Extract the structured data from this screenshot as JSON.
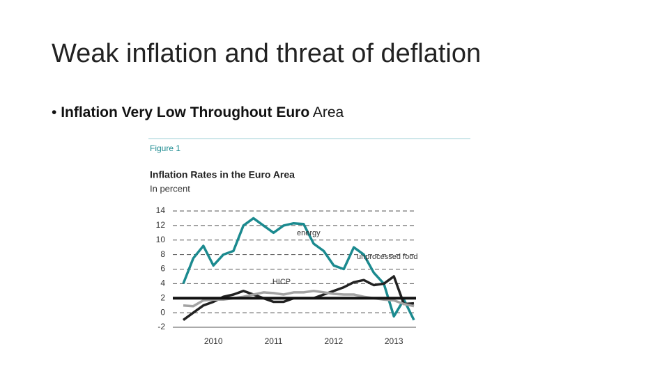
{
  "slide": {
    "title": "Weak inflation and threat of deflation",
    "bullet_bold": "Inflation Very Low Throughout Euro",
    "bullet_rest": "Area"
  },
  "chart_data": {
    "type": "line",
    "figure_label": "Figure 1",
    "title": "Inflation Rates in the Euro Area",
    "subtitle": "In percent",
    "categories": [
      null,
      null,
      null,
      "2010",
      null,
      null,
      null,
      null,
      null,
      "2011",
      null,
      null,
      null,
      null,
      null,
      "2012",
      null,
      null,
      null,
      null,
      null,
      "2013",
      null,
      null
    ],
    "ylim": [
      -2,
      14
    ],
    "yticks": [
      -2,
      0,
      2,
      4,
      6,
      8,
      10,
      12,
      14
    ],
    "grid": true,
    "reference_line": 2,
    "series": [
      {
        "name": "energy",
        "color": "#1b8a8f",
        "values": [
          4.0,
          7.5,
          9.2,
          6.5,
          8.0,
          8.5,
          12.0,
          13.0,
          12.0,
          11.0,
          12.0,
          12.3,
          12.2,
          9.5,
          8.5,
          6.5,
          6.0,
          9.0,
          8.0,
          5.5,
          4.0,
          -0.5,
          1.8,
          -1.0
        ]
      },
      {
        "name": "unprocessed food",
        "color": "#222222",
        "values": [
          -1.0,
          0.0,
          1.0,
          1.5,
          2.2,
          2.5,
          3.0,
          2.5,
          2.0,
          1.5,
          1.5,
          2.0,
          2.0,
          2.0,
          2.5,
          3.0,
          3.5,
          4.2,
          4.5,
          3.8,
          4.0,
          5.0,
          1.2,
          1.3
        ]
      },
      {
        "name": "HICP",
        "color": "#a3a3a3",
        "values": [
          1.0,
          0.9,
          1.7,
          1.8,
          1.8,
          2.0,
          2.2,
          2.5,
          2.8,
          2.7,
          2.5,
          2.8,
          2.8,
          3.0,
          2.8,
          2.6,
          2.5,
          2.5,
          2.2,
          2.0,
          1.8,
          1.7,
          1.2,
          0.9
        ]
      }
    ]
  }
}
